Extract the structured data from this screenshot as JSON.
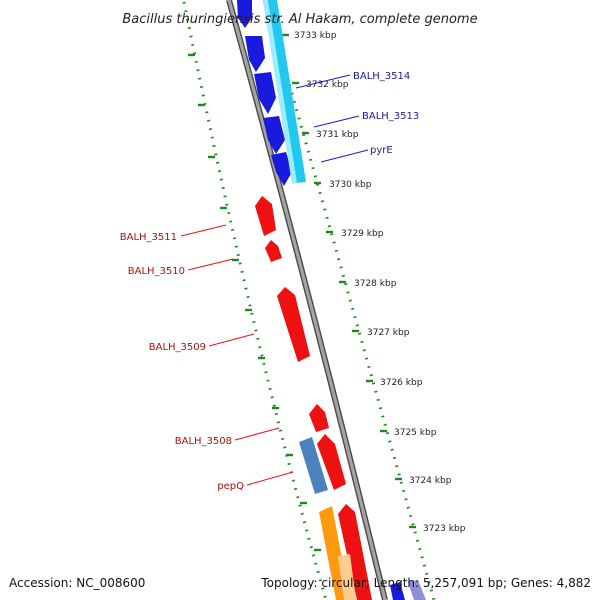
{
  "title": "Bacillus thuringiensis str. Al Hakam, complete genome",
  "footer": {
    "accession": "Accession: NC_008600",
    "summary": "Topology: circular; Length: 5,257,091 bp; Genes: 4,882"
  },
  "ticks": [
    "3733 kbp",
    "3732 kbp",
    "3731 kbp",
    "3730 kbp",
    "3729 kbp",
    "3728 kbp",
    "3727 kbp",
    "3726 kbp",
    "3725 kbp",
    "3724 kbp",
    "3723 kbp"
  ],
  "genes_forward": [
    "BALH_3514",
    "BALH_3513",
    "pyrE"
  ],
  "genes_reverse": [
    "BALH_3511",
    "BALH_3510",
    "BALH_3509",
    "BALH_3508",
    "pepQ"
  ],
  "colors": {
    "forward_cds": "#1a1adf",
    "reverse_cds": "#ee1111",
    "cyan_feature": "#22c8ee",
    "steelblue_feature": "#4a82bf",
    "orange_feature": "#ff9a10",
    "backbone": "#8e8e8e",
    "tick_green": "#1e8a1e",
    "forward_label": "#1a1a9a",
    "reverse_label": "#b01010"
  }
}
